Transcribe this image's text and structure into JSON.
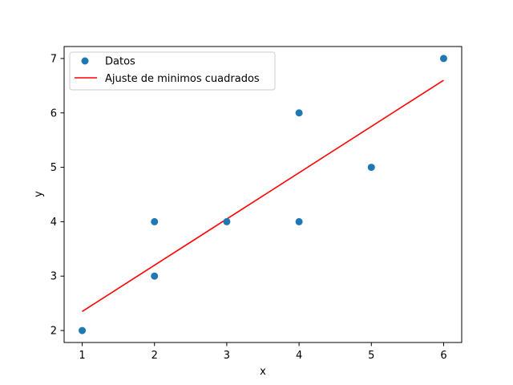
{
  "chart_data": {
    "type": "scatter",
    "title": "",
    "xlabel": "x",
    "ylabel": "y",
    "xlim": [
      0.75,
      6.25
    ],
    "ylim": [
      1.78,
      7.22
    ],
    "xticks": [
      1,
      2,
      3,
      4,
      5,
      6
    ],
    "yticks": [
      2,
      3,
      4,
      5,
      6,
      7
    ],
    "grid": false,
    "legend_placement": "top-left",
    "series": [
      {
        "name": "Datos",
        "kind": "scatter",
        "color": "#1f77b4",
        "x": [
          1,
          2,
          2,
          3,
          4,
          4,
          5,
          6
        ],
        "y": [
          2,
          3,
          4,
          4,
          4,
          6,
          5,
          7
        ]
      },
      {
        "name": "Ajuste de minimos cuadrados",
        "kind": "line",
        "color": "#ff0000",
        "x": [
          1,
          6
        ],
        "y": [
          2.35,
          6.6
        ]
      }
    ]
  }
}
